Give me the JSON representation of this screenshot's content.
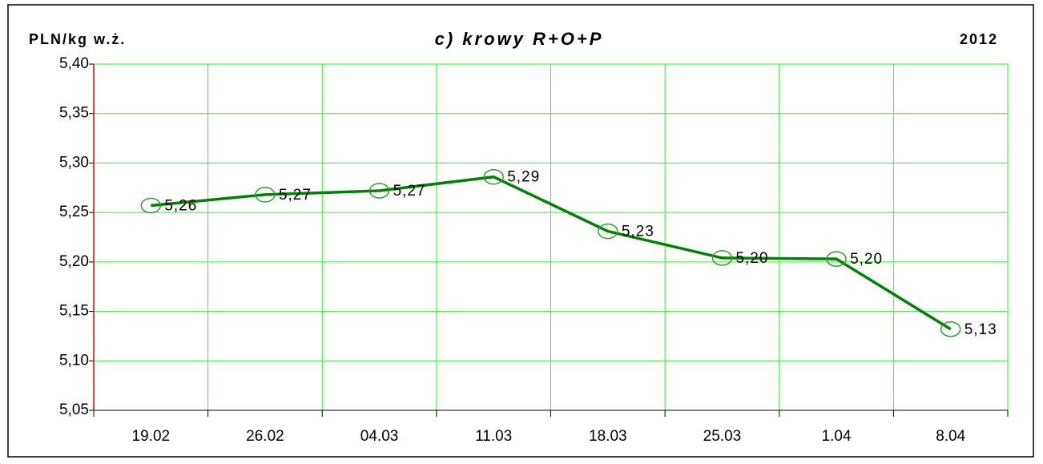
{
  "chart_data": {
    "type": "line",
    "title": "c) krowy R+O+P",
    "y_label": "PLN/kg w.ż.",
    "annotation": "2012",
    "categories": [
      "19.02",
      "26.02",
      "04.03",
      "11.03",
      "18.03",
      "25.03",
      "1.04",
      "8.04"
    ],
    "series": [
      {
        "name": "krowy R+O+P",
        "color": "#008000",
        "values": [
          5.257,
          5.268,
          5.272,
          5.286,
          5.231,
          5.204,
          5.203,
          5.132
        ],
        "value_labels": [
          "5,26",
          "5,27",
          "5,27",
          "5,29",
          "5,23",
          "5,20",
          "5,20",
          "5,13"
        ]
      }
    ],
    "ylim": [
      5.05,
      5.4
    ],
    "yticks": [
      {
        "value": 5.05,
        "label": "5,05"
      },
      {
        "value": 5.1,
        "label": "5,10"
      },
      {
        "value": 5.15,
        "label": "5,15"
      },
      {
        "value": 5.2,
        "label": "5,20"
      },
      {
        "value": 5.25,
        "label": "5,25"
      },
      {
        "value": 5.3,
        "label": "5,30"
      },
      {
        "value": 5.35,
        "label": "5,35"
      },
      {
        "value": 5.4,
        "label": "5,40"
      }
    ],
    "grid": true,
    "grid_color": "#33ee33",
    "axis_color": "#cc0000",
    "marker_color": "#339933"
  }
}
